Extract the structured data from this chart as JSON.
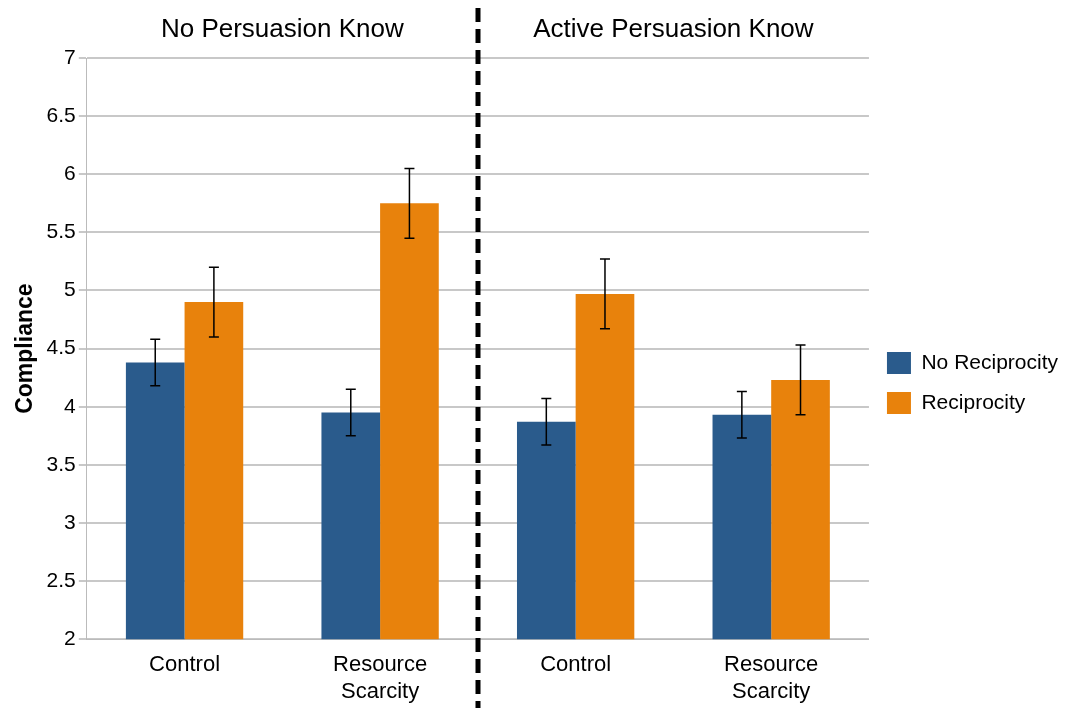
{
  "chart_data": {
    "type": "bar",
    "ylabel": "Compliance",
    "categories": [
      "Control",
      "Resource Scarcity",
      "Control",
      "Resource Scarcity"
    ],
    "series": [
      {
        "name": "No Reciprocity",
        "color": "#2a5b8c",
        "values": [
          4.38,
          3.95,
          3.87,
          3.93
        ],
        "errors": [
          0.2,
          0.2,
          0.2,
          0.2
        ]
      },
      {
        "name": "Reciprocity",
        "color": "#e8820c",
        "values": [
          4.9,
          5.75,
          4.97,
          4.23
        ],
        "errors": [
          0.3,
          0.3,
          0.3,
          0.3
        ]
      }
    ],
    "annotations": [
      "No Persuasion Know",
      "Active Persuasion Know"
    ],
    "ylim": [
      2,
      7
    ],
    "yticks": [
      2,
      2.5,
      3,
      3.5,
      4,
      4.5,
      5,
      5.5,
      6,
      6.5,
      7
    ],
    "grid": "y",
    "legend": "right"
  }
}
